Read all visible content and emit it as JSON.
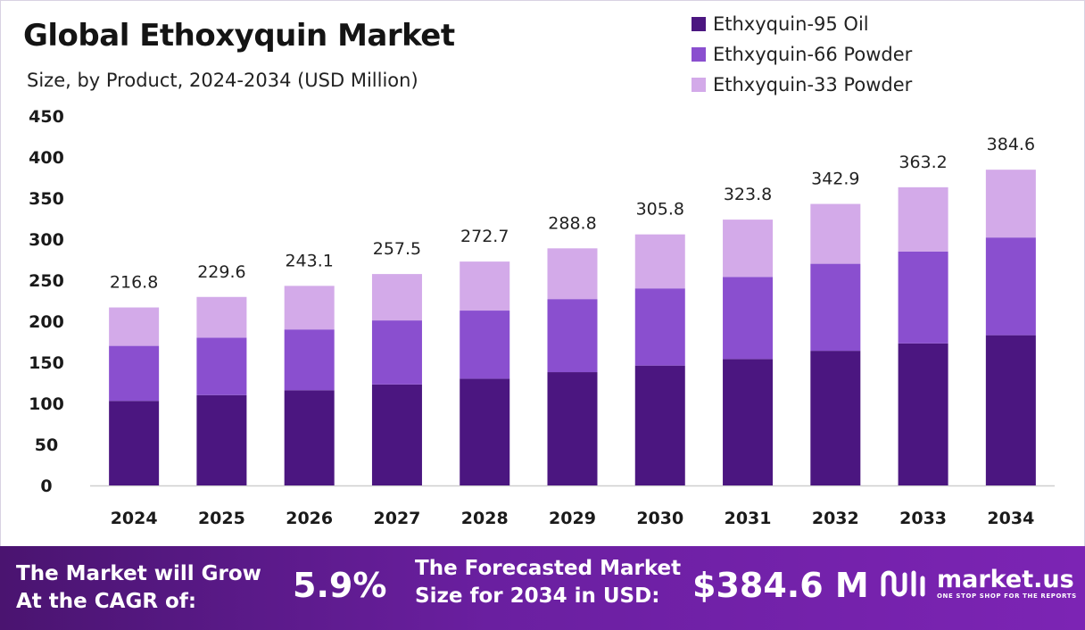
{
  "header": {
    "title": "Global Ethoxyquin Market",
    "subtitle": "Size, by Product, 2024-2034 (USD Million)"
  },
  "legend": [
    {
      "label": "Ethxyquin-95 Oil",
      "color": "#4b1680"
    },
    {
      "label": "Ethxyquin-66 Powder",
      "color": "#8a4fcf"
    },
    {
      "label": "Ethxyquin-33 Powder",
      "color": "#d3aae9"
    }
  ],
  "chart_data": {
    "type": "bar",
    "stacked": true,
    "categories": [
      "2024",
      "2025",
      "2026",
      "2027",
      "2028",
      "2029",
      "2030",
      "2031",
      "2032",
      "2033",
      "2034"
    ],
    "series": [
      {
        "name": "Ethxyquin-95 Oil",
        "color": "#4b1680",
        "values": [
          103,
          110,
          116,
          123,
          130,
          138,
          146,
          154,
          164,
          173,
          183
        ]
      },
      {
        "name": "Ethxyquin-66 Powder",
        "color": "#8a4fcf",
        "values": [
          67,
          70,
          74,
          78,
          83,
          89,
          94,
          100,
          106,
          112,
          119
        ]
      },
      {
        "name": "Ethxyquin-33 Powder",
        "color": "#d3aae9",
        "values": [
          46.8,
          49.6,
          53.1,
          56.5,
          59.7,
          61.8,
          65.8,
          69.8,
          72.9,
          78.2,
          82.6
        ]
      }
    ],
    "totals": [
      "216.8",
      "229.6",
      "243.1",
      "257.5",
      "272.7",
      "288.8",
      "305.8",
      "323.8",
      "342.9",
      "363.2",
      "384.6"
    ],
    "yticks": [
      0,
      50,
      100,
      150,
      200,
      250,
      300,
      350,
      400,
      450
    ],
    "ylim": [
      0,
      450
    ],
    "grid": false
  },
  "banner": {
    "cagr_label_line1": "The Market will Grow",
    "cagr_label_line2": "At the CAGR of:",
    "cagr_value": "5.9%",
    "forecast_label_line1": "The Forecasted Market",
    "forecast_label_line2": "Size for 2034 in USD:",
    "forecast_value": "$384.6 M",
    "brand_name": "market.us",
    "brand_tagline": "ONE STOP SHOP FOR THE REPORTS"
  }
}
